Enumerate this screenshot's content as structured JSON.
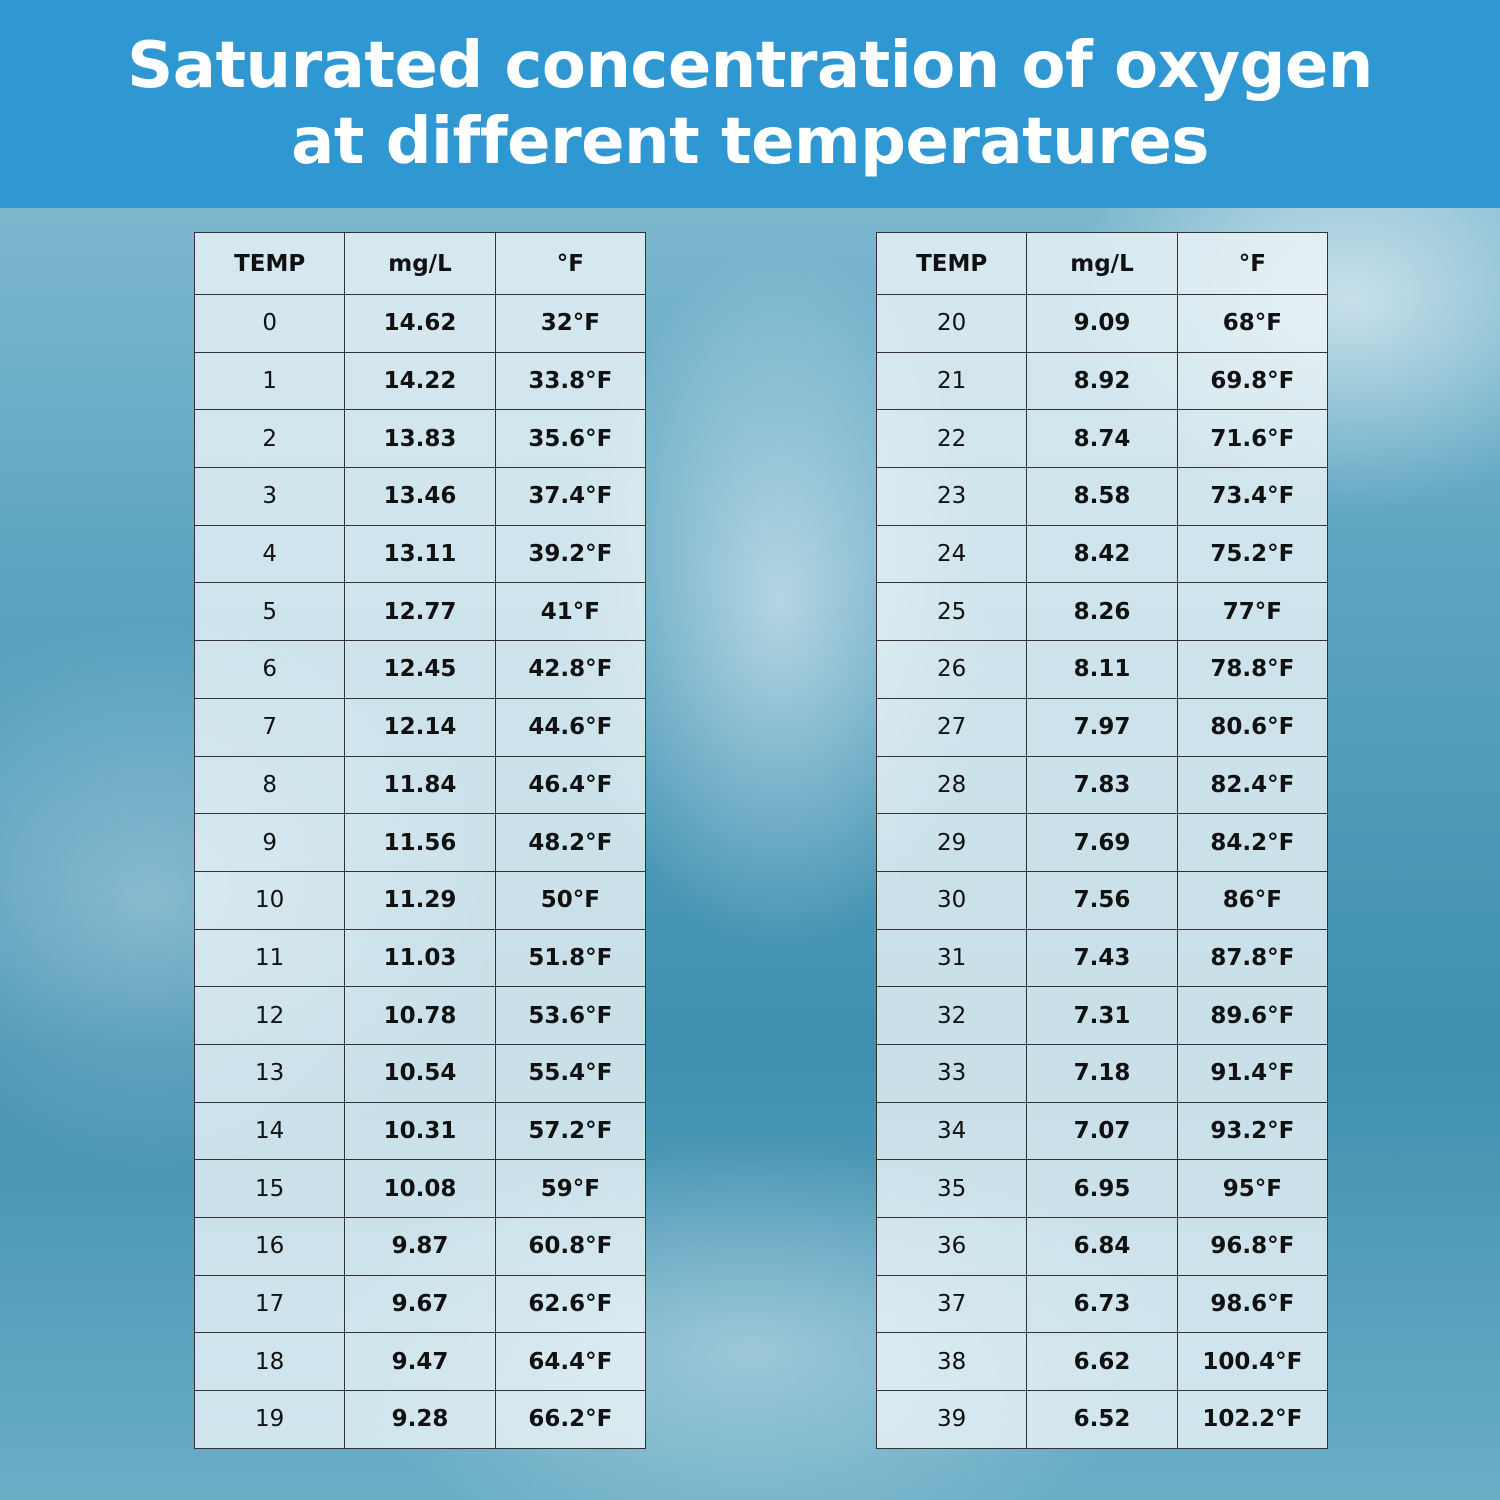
{
  "header": {
    "title_lines": [
      "Saturated concentration of oxygen",
      "at different temperatures"
    ]
  },
  "tables": [
    {
      "columns": [
        "TEMP",
        "mg/L",
        "°F"
      ],
      "rows": [
        [
          "0",
          "14.62",
          "32°F"
        ],
        [
          "1",
          "14.22",
          "33.8°F"
        ],
        [
          "2",
          "13.83",
          "35.6°F"
        ],
        [
          "3",
          "13.46",
          "37.4°F"
        ],
        [
          "4",
          "13.11",
          "39.2°F"
        ],
        [
          "5",
          "12.77",
          "41°F"
        ],
        [
          "6",
          "12.45",
          "42.8°F"
        ],
        [
          "7",
          "12.14",
          "44.6°F"
        ],
        [
          "8",
          "11.84",
          "46.4°F"
        ],
        [
          "9",
          "11.56",
          "48.2°F"
        ],
        [
          "10",
          "11.29",
          "50°F"
        ],
        [
          "11",
          "11.03",
          "51.8°F"
        ],
        [
          "12",
          "10.78",
          "53.6°F"
        ],
        [
          "13",
          "10.54",
          "55.4°F"
        ],
        [
          "14",
          "10.31",
          "57.2°F"
        ],
        [
          "15",
          "10.08",
          "59°F"
        ],
        [
          "16",
          "9.87",
          "60.8°F"
        ],
        [
          "17",
          "9.67",
          "62.6°F"
        ],
        [
          "18",
          "9.47",
          "64.4°F"
        ],
        [
          "19",
          "9.28",
          "66.2°F"
        ]
      ]
    },
    {
      "columns": [
        "TEMP",
        "mg/L",
        "°F"
      ],
      "rows": [
        [
          "20",
          "9.09",
          "68°F"
        ],
        [
          "21",
          "8.92",
          "69.8°F"
        ],
        [
          "22",
          "8.74",
          "71.6°F"
        ],
        [
          "23",
          "8.58",
          "73.4°F"
        ],
        [
          "24",
          "8.42",
          "75.2°F"
        ],
        [
          "25",
          "8.26",
          "77°F"
        ],
        [
          "26",
          "8.11",
          "78.8°F"
        ],
        [
          "27",
          "7.97",
          "80.6°F"
        ],
        [
          "28",
          "7.83",
          "82.4°F"
        ],
        [
          "29",
          "7.69",
          "84.2°F"
        ],
        [
          "30",
          "7.56",
          "86°F"
        ],
        [
          "31",
          "7.43",
          "87.8°F"
        ],
        [
          "32",
          "7.31",
          "89.6°F"
        ],
        [
          "33",
          "7.18",
          "91.4°F"
        ],
        [
          "34",
          "7.07",
          "93.2°F"
        ],
        [
          "35",
          "6.95",
          "95°F"
        ],
        [
          "36",
          "6.84",
          "96.8°F"
        ],
        [
          "37",
          "6.73",
          "98.6°F"
        ],
        [
          "38",
          "6.62",
          "100.4°F"
        ],
        [
          "39",
          "6.52",
          "102.2°F"
        ]
      ]
    }
  ]
}
